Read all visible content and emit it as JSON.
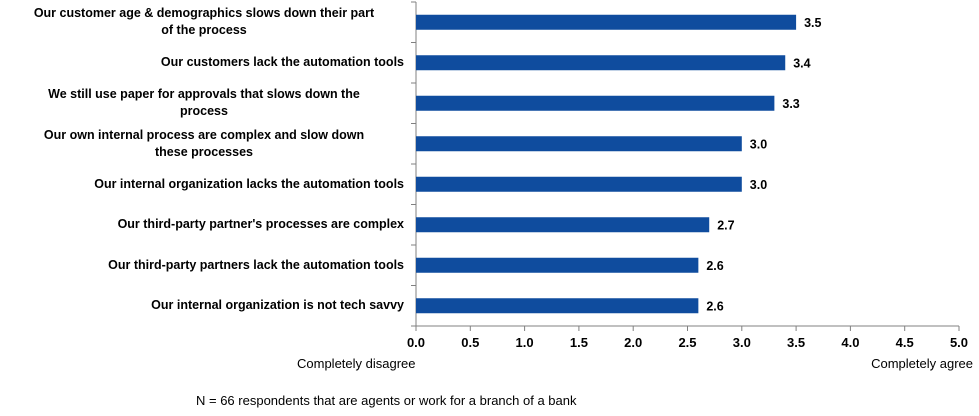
{
  "chart_data": {
    "type": "bar",
    "orientation": "horizontal",
    "categories": [
      "Our customer age & demographics slows down their part of the process",
      "Our customers lack the automation tools",
      "We still use paper for approvals that slows down the process",
      "Our own internal process are complex and slow down these processes",
      "Our internal organization lacks the automation tools",
      "Our third-party partner's processes are complex",
      "Our third-party partners lack the automation tools",
      "Our internal organization is not tech savvy"
    ],
    "category_lines": [
      [
        "Our customer age & demographics slows down their part",
        "of the process"
      ],
      [
        "Our customers lack the automation tools"
      ],
      [
        "We still use paper for approvals that slows down the",
        "process"
      ],
      [
        "Our own internal process are complex and slow down",
        "these processes"
      ],
      [
        "Our internal organization lacks the automation tools"
      ],
      [
        "Our third-party partner's processes are complex"
      ],
      [
        "Our third-party partners lack the automation tools"
      ],
      [
        "Our internal organization is not tech savvy"
      ]
    ],
    "values": [
      3.5,
      3.4,
      3.3,
      3.0,
      3.0,
      2.7,
      2.6,
      2.6
    ],
    "value_labels": [
      "3.5",
      "3.4",
      "3.3",
      "3.0",
      "3.0",
      "2.7",
      "2.6",
      "2.6"
    ],
    "xlim": [
      0,
      5
    ],
    "xticks": [
      "0.0",
      "0.5",
      "1.0",
      "1.5",
      "2.0",
      "2.5",
      "3.0",
      "3.5",
      "4.0",
      "4.5",
      "5.0"
    ],
    "x_left_label": "Completely disagree",
    "x_right_label": "Completely agree",
    "grid": false,
    "legend": "none",
    "bar_color": "#0F4C9E"
  },
  "note": "N = 66 respondents that are agents or work for a branch of a bank"
}
